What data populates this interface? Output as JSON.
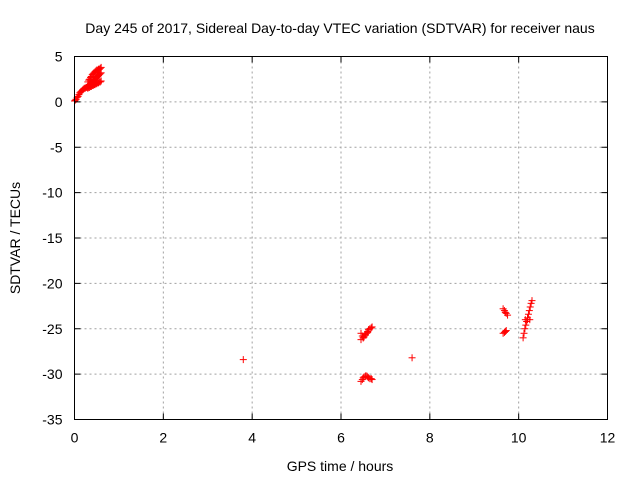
{
  "chart_data": {
    "type": "scatter",
    "title": "Day 245 of 2017, Sidereal Day-to-day VTEC variation (SDTVAR) for receiver naus",
    "xlabel": "GPS time / hours",
    "ylabel": "SDTVAR / TECUs",
    "xlim": [
      0,
      12
    ],
    "ylim": [
      -35,
      5
    ],
    "xticks": [
      0,
      2,
      4,
      6,
      8,
      10,
      12
    ],
    "yticks": [
      5,
      0,
      -5,
      -10,
      -15,
      -20,
      -25,
      -30,
      -35
    ],
    "grid": true,
    "marker": "+",
    "color": "#ff0000",
    "series": [
      {
        "x": [
          0.0,
          0.02,
          0.04,
          0.06,
          0.08,
          0.1,
          0.12,
          0.14,
          0.16,
          0.18,
          0.2,
          0.22,
          0.24,
          0.26,
          0.28,
          0.3,
          0.32,
          0.34,
          0.36,
          0.38,
          0.4,
          0.42,
          0.44,
          0.46,
          0.48,
          0.5,
          0.52,
          0.54,
          0.56,
          0.58,
          0.6,
          0.3,
          0.32,
          0.34,
          0.36,
          0.38,
          0.4,
          0.42,
          0.44,
          0.46,
          0.48,
          0.5,
          0.52,
          0.54,
          0.56,
          0.58,
          0.6,
          0.3,
          0.32,
          0.34,
          0.36,
          0.38,
          0.4,
          0.42,
          0.44,
          0.46,
          0.48,
          0.5,
          0.52,
          0.54,
          0.56,
          0.58,
          0.6,
          3.8,
          7.6,
          6.45,
          6.48,
          6.5,
          6.52,
          6.55,
          6.58,
          6.6,
          6.62,
          6.65,
          6.68,
          6.7,
          6.45,
          6.48,
          6.5,
          6.52,
          6.55,
          6.58,
          6.6,
          6.62,
          6.65,
          6.68,
          6.7,
          6.45,
          6.5,
          6.55,
          6.6,
          9.65,
          9.68,
          9.7,
          9.72,
          9.75,
          9.65,
          9.68,
          9.7,
          9.72,
          10.1,
          10.12,
          10.14,
          10.16,
          10.18,
          10.2,
          10.22,
          10.24,
          10.26,
          10.28,
          10.3,
          10.15,
          10.2,
          10.25
        ],
        "y": [
          0.1,
          0.2,
          0.3,
          0.5,
          0.6,
          0.8,
          1.0,
          1.1,
          1.2,
          1.3,
          1.4,
          1.5,
          1.5,
          1.6,
          1.6,
          1.7,
          1.8,
          1.9,
          2.0,
          2.1,
          2.2,
          2.3,
          2.4,
          2.5,
          2.6,
          2.7,
          2.8,
          2.9,
          3.0,
          3.1,
          3.2,
          1.5,
          1.6,
          1.6,
          1.7,
          1.7,
          1.8,
          1.8,
          1.9,
          1.9,
          2.0,
          2.0,
          2.1,
          2.1,
          2.2,
          2.2,
          2.3,
          2.2,
          2.4,
          2.5,
          2.7,
          2.8,
          3.0,
          3.1,
          3.2,
          3.3,
          3.4,
          3.5,
          3.5,
          3.6,
          3.6,
          3.7,
          3.8,
          -28.4,
          -28.2,
          -25.5,
          -25.8,
          -26.0,
          -25.9,
          -25.7,
          -25.5,
          -25.3,
          -25.1,
          -25.0,
          -24.9,
          -24.8,
          -30.8,
          -30.6,
          -30.4,
          -30.3,
          -30.2,
          -30.2,
          -30.3,
          -30.4,
          -30.5,
          -30.5,
          -30.6,
          -26.2,
          -26.0,
          -25.6,
          -25.4,
          -22.8,
          -23.0,
          -23.2,
          -23.3,
          -23.5,
          -25.5,
          -25.4,
          -25.3,
          -25.2,
          -26.0,
          -25.5,
          -25.0,
          -24.6,
          -24.2,
          -23.8,
          -23.4,
          -23.0,
          -22.6,
          -22.2,
          -21.9,
          -24.0,
          -24.0,
          -24.0
        ]
      }
    ]
  }
}
